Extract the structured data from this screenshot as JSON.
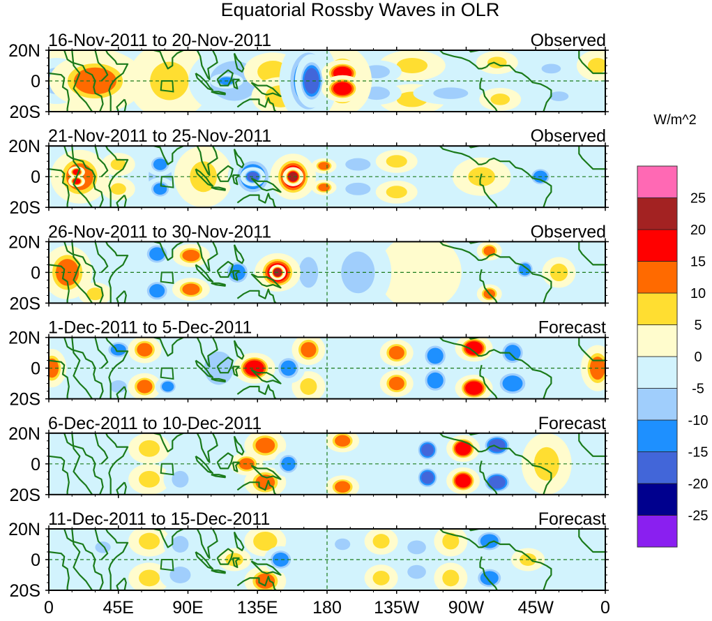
{
  "chart_data": {
    "type": "heatmap",
    "title": "Equatorial Rossby Waves in OLR",
    "colorbar": {
      "unit_label": "W/m^2",
      "levels": [
        -25,
        -20,
        -15,
        -10,
        -5,
        0,
        5,
        10,
        15,
        20,
        25
      ],
      "level_labels": [
        "-25",
        "-20",
        "-15",
        "-10",
        "-5",
        "0",
        "5",
        "10",
        "15",
        "20",
        "25"
      ],
      "colors": [
        "#8a1ff0",
        "#00008e",
        "#4266d9",
        "#1e90ff",
        "#a0cefc",
        "#d2f3fd",
        "#fffccd",
        "#ffde31",
        "#ff6a00",
        "#ff0000",
        "#a32222",
        "#ff69b4"
      ]
    },
    "x_axis": {
      "range_deg_east": [
        0,
        360
      ],
      "tick_values": [
        0,
        45,
        90,
        135,
        180,
        225,
        270,
        315,
        360
      ],
      "tick_labels": [
        "0",
        "45E",
        "90E",
        "135E",
        "180",
        "135W",
        "90W",
        "45W",
        "0"
      ]
    },
    "y_axis": {
      "range_deg_lat": [
        -20,
        20
      ],
      "tick_values": [
        20,
        0,
        -20
      ],
      "tick_labels": [
        "20N",
        "0",
        "20S"
      ]
    },
    "grid": false,
    "equator_line": true,
    "dateline_line": true,
    "panels": [
      {
        "title": "16-Nov-2011 to 20-Nov-2011",
        "status": "Observed",
        "features": [
          {
            "lon": 30,
            "lat": 0,
            "value": 12,
            "wlon": 22,
            "wlat": 14
          },
          {
            "lon": 22,
            "lat": 0,
            "value": 7,
            "wlon": 30,
            "wlat": 18
          },
          {
            "lon": 5,
            "lat": 0,
            "value": -8,
            "wlon": 14,
            "wlat": 12
          },
          {
            "lon": 60,
            "lat": 8,
            "value": -6,
            "wlon": 12,
            "wlat": 6
          },
          {
            "lon": 60,
            "lat": -8,
            "value": -6,
            "wlon": 12,
            "wlat": 6
          },
          {
            "lon": 78,
            "lat": 0,
            "value": 6,
            "wlon": 20,
            "wlat": 20
          },
          {
            "lon": 120,
            "lat": 0,
            "value": -8,
            "wlon": 22,
            "wlat": 18
          },
          {
            "lon": 115,
            "lat": 0,
            "value": -12,
            "wlon": 8,
            "wlat": 4
          },
          {
            "lon": 145,
            "lat": 6,
            "value": 8,
            "wlon": 14,
            "wlat": 10
          },
          {
            "lon": 150,
            "lat": -10,
            "value": 8,
            "wlon": 14,
            "wlat": 10
          },
          {
            "lon": 168,
            "lat": 0,
            "value": -14,
            "wlon": 14,
            "wlat": 22
          },
          {
            "lon": 170,
            "lat": 0,
            "value": -17,
            "wlon": 8,
            "wlat": 14
          },
          {
            "lon": 190,
            "lat": 5,
            "value": 17,
            "wlon": 10,
            "wlat": 7
          },
          {
            "lon": 190,
            "lat": -5,
            "value": 17,
            "wlon": 10,
            "wlat": 7
          },
          {
            "lon": 190,
            "lat": 0,
            "value": 12,
            "wlon": 14,
            "wlat": 18
          },
          {
            "lon": 212,
            "lat": 6,
            "value": -8,
            "wlon": 12,
            "wlat": 6
          },
          {
            "lon": 212,
            "lat": -8,
            "value": -8,
            "wlon": 12,
            "wlat": 6
          },
          {
            "lon": 235,
            "lat": 10,
            "value": 6,
            "wlon": 16,
            "wlat": 8
          },
          {
            "lon": 235,
            "lat": -12,
            "value": 6,
            "wlon": 16,
            "wlat": 8
          },
          {
            "lon": 260,
            "lat": -8,
            "value": -6,
            "wlon": 18,
            "wlat": 6
          },
          {
            "lon": 290,
            "lat": 12,
            "value": 6,
            "wlon": 10,
            "wlat": 6
          },
          {
            "lon": 292,
            "lat": -12,
            "value": 6,
            "wlon": 10,
            "wlat": 6
          },
          {
            "lon": 325,
            "lat": 8,
            "value": -6,
            "wlon": 10,
            "wlat": 5
          },
          {
            "lon": 330,
            "lat": -10,
            "value": -6,
            "wlon": 10,
            "wlat": 5
          },
          {
            "lon": 355,
            "lat": 10,
            "value": 6,
            "wlon": 10,
            "wlat": 8
          }
        ]
      },
      {
        "title": "21-Nov-2011 to 25-Nov-2011",
        "status": "Observed",
        "features": [
          {
            "lon": 20,
            "lat": 0,
            "value": 12,
            "wlon": 14,
            "wlat": 14
          },
          {
            "lon": 18,
            "lat": 3,
            "value": 17,
            "wlon": 4,
            "wlat": 3
          },
          {
            "lon": 18,
            "lat": -3,
            "value": 17,
            "wlon": 4,
            "wlat": 3
          },
          {
            "lon": 45,
            "lat": 8,
            "value": 6,
            "wlon": 8,
            "wlat": 6
          },
          {
            "lon": 45,
            "lat": -8,
            "value": 6,
            "wlon": 8,
            "wlat": 6
          },
          {
            "lon": 72,
            "lat": 8,
            "value": -12,
            "wlon": 7,
            "wlat": 6
          },
          {
            "lon": 72,
            "lat": -8,
            "value": -12,
            "wlon": 7,
            "wlat": 6
          },
          {
            "lon": 72,
            "lat": 0,
            "value": -6,
            "wlon": 12,
            "wlat": 18
          },
          {
            "lon": 100,
            "lat": 0,
            "value": 6,
            "wlon": 14,
            "wlat": 16
          },
          {
            "lon": 132,
            "lat": 0,
            "value": -14,
            "wlon": 12,
            "wlat": 12
          },
          {
            "lon": 132,
            "lat": 0,
            "value": -18,
            "wlon": 6,
            "wlat": 5
          },
          {
            "lon": 158,
            "lat": 0,
            "value": 17,
            "wlon": 11,
            "wlat": 12
          },
          {
            "lon": 158,
            "lat": 0,
            "value": 21,
            "wlon": 5,
            "wlat": 5
          },
          {
            "lon": 178,
            "lat": 7,
            "value": 12,
            "wlon": 6,
            "wlat": 4
          },
          {
            "lon": 178,
            "lat": -7,
            "value": 12,
            "wlon": 6,
            "wlat": 4
          },
          {
            "lon": 200,
            "lat": 8,
            "value": -7,
            "wlon": 12,
            "wlat": 6
          },
          {
            "lon": 200,
            "lat": -8,
            "value": -7,
            "wlon": 12,
            "wlat": 6
          },
          {
            "lon": 225,
            "lat": 10,
            "value": 7,
            "wlon": 10,
            "wlat": 6
          },
          {
            "lon": 225,
            "lat": -10,
            "value": 7,
            "wlon": 10,
            "wlat": 6
          },
          {
            "lon": 280,
            "lat": 0,
            "value": 6,
            "wlon": 14,
            "wlat": 10
          },
          {
            "lon": 318,
            "lat": 0,
            "value": -13,
            "wlon": 7,
            "wlat": 6
          }
        ]
      },
      {
        "title": "26-Nov-2011 to 30-Nov-2011",
        "status": "Observed",
        "features": [
          {
            "lon": 12,
            "lat": 0,
            "value": 12,
            "wlon": 12,
            "wlat": 14
          },
          {
            "lon": 30,
            "lat": -14,
            "value": 7,
            "wlon": 8,
            "wlat": 6
          },
          {
            "lon": 70,
            "lat": 12,
            "value": -12,
            "wlon": 8,
            "wlat": 7
          },
          {
            "lon": 70,
            "lat": -12,
            "value": -12,
            "wlon": 8,
            "wlat": 7
          },
          {
            "lon": 92,
            "lat": 11,
            "value": 12,
            "wlon": 9,
            "wlat": 6
          },
          {
            "lon": 92,
            "lat": -11,
            "value": 12,
            "wlon": 9,
            "wlat": 6
          },
          {
            "lon": 122,
            "lat": 0,
            "value": -13,
            "wlon": 8,
            "wlat": 8
          },
          {
            "lon": 148,
            "lat": 0,
            "value": 17,
            "wlon": 11,
            "wlat": 10
          },
          {
            "lon": 148,
            "lat": 0,
            "value": 24,
            "wlon": 4,
            "wlat": 4
          },
          {
            "lon": 168,
            "lat": 0,
            "value": -6,
            "wlon": 10,
            "wlat": 16
          },
          {
            "lon": 200,
            "lat": 0,
            "value": -7,
            "wlon": 16,
            "wlat": 20
          },
          {
            "lon": 240,
            "lat": 0,
            "value": 4,
            "wlon": 20,
            "wlat": 20
          },
          {
            "lon": 285,
            "lat": 14,
            "value": 12,
            "wlon": 6,
            "wlat": 5
          },
          {
            "lon": 285,
            "lat": -14,
            "value": 12,
            "wlon": 6,
            "wlat": 5
          },
          {
            "lon": 308,
            "lat": 2,
            "value": -13,
            "wlon": 6,
            "wlat": 6
          },
          {
            "lon": 330,
            "lat": 0,
            "value": 8,
            "wlon": 8,
            "wlat": 8
          }
        ]
      },
      {
        "title": "1-Dec-2011 to 5-Dec-2011",
        "status": "Forecast",
        "features": [
          {
            "lon": 2,
            "lat": 0,
            "value": 12,
            "wlon": 7,
            "wlat": 10
          },
          {
            "lon": 45,
            "lat": 12,
            "value": -12,
            "wlon": 8,
            "wlat": 6
          },
          {
            "lon": 45,
            "lat": -12,
            "value": -7,
            "wlon": 8,
            "wlat": 6
          },
          {
            "lon": 62,
            "lat": 12,
            "value": 12,
            "wlon": 8,
            "wlat": 7
          },
          {
            "lon": 62,
            "lat": -12,
            "value": 12,
            "wlon": 8,
            "wlat": 7
          },
          {
            "lon": 77,
            "lat": -12,
            "value": -13,
            "wlon": 6,
            "wlat": 5
          },
          {
            "lon": 110,
            "lat": 0,
            "value": -7,
            "wlon": 14,
            "wlat": 16
          },
          {
            "lon": 133,
            "lat": 0,
            "value": 18,
            "wlon": 10,
            "wlat": 8
          },
          {
            "lon": 155,
            "lat": 0,
            "value": -12,
            "wlon": 8,
            "wlat": 8
          },
          {
            "lon": 168,
            "lat": 12,
            "value": 12,
            "wlon": 8,
            "wlat": 8
          },
          {
            "lon": 168,
            "lat": -12,
            "value": 7,
            "wlon": 8,
            "wlat": 8
          },
          {
            "lon": 225,
            "lat": 10,
            "value": 12,
            "wlon": 8,
            "wlat": 7
          },
          {
            "lon": 225,
            "lat": -10,
            "value": 12,
            "wlon": 8,
            "wlat": 7
          },
          {
            "lon": 250,
            "lat": 8,
            "value": -13,
            "wlon": 8,
            "wlat": 8
          },
          {
            "lon": 250,
            "lat": -8,
            "value": -13,
            "wlon": 8,
            "wlat": 8
          },
          {
            "lon": 275,
            "lat": 13,
            "value": 18,
            "wlon": 9,
            "wlat": 7
          },
          {
            "lon": 275,
            "lat": -13,
            "value": 18,
            "wlon": 9,
            "wlat": 7
          },
          {
            "lon": 300,
            "lat": 10,
            "value": -13,
            "wlon": 8,
            "wlat": 8
          },
          {
            "lon": 300,
            "lat": -10,
            "value": -13,
            "wlon": 10,
            "wlat": 8
          },
          {
            "lon": 355,
            "lat": 0,
            "value": 12,
            "wlon": 8,
            "wlat": 12
          }
        ]
      },
      {
        "title": "6-Dec-2011 to 10-Dec-2011",
        "status": "Forecast",
        "features": [
          {
            "lon": 65,
            "lat": 10,
            "value": 7,
            "wlon": 10,
            "wlat": 8
          },
          {
            "lon": 65,
            "lat": -10,
            "value": 7,
            "wlon": 10,
            "wlat": 8
          },
          {
            "lon": 85,
            "lat": -10,
            "value": -7,
            "wlon": 8,
            "wlat": 8
          },
          {
            "lon": 140,
            "lat": 12,
            "value": 12,
            "wlon": 10,
            "wlat": 8
          },
          {
            "lon": 140,
            "lat": -12,
            "value": 12,
            "wlon": 10,
            "wlat": 8
          },
          {
            "lon": 128,
            "lat": 0,
            "value": 12,
            "wlon": 8,
            "wlat": 6
          },
          {
            "lon": 155,
            "lat": 0,
            "value": -13,
            "wlon": 7,
            "wlat": 7
          },
          {
            "lon": 190,
            "lat": 15,
            "value": 12,
            "wlon": 8,
            "wlat": 6
          },
          {
            "lon": 190,
            "lat": -15,
            "value": 12,
            "wlon": 8,
            "wlat": 6
          },
          {
            "lon": 245,
            "lat": 9,
            "value": -16,
            "wlon": 7,
            "wlat": 7
          },
          {
            "lon": 245,
            "lat": -9,
            "value": -16,
            "wlon": 7,
            "wlat": 7
          },
          {
            "lon": 268,
            "lat": 10,
            "value": 18,
            "wlon": 8,
            "wlat": 7
          },
          {
            "lon": 268,
            "lat": -11,
            "value": 18,
            "wlon": 8,
            "wlat": 7
          },
          {
            "lon": 290,
            "lat": 12,
            "value": -17,
            "wlon": 9,
            "wlat": 7
          },
          {
            "lon": 290,
            "lat": -12,
            "value": -17,
            "wlon": 9,
            "wlat": 7
          },
          {
            "lon": 322,
            "lat": 0,
            "value": 7,
            "wlon": 12,
            "wlat": 16
          }
        ]
      },
      {
        "title": "11-Dec-2011 to 15-Dec-2011",
        "status": "Forecast",
        "features": [
          {
            "lon": 35,
            "lat": 8,
            "value": -6,
            "wlon": 8,
            "wlat": 6
          },
          {
            "lon": 65,
            "lat": 12,
            "value": 7,
            "wlon": 10,
            "wlat": 8
          },
          {
            "lon": 65,
            "lat": -12,
            "value": 7,
            "wlon": 10,
            "wlat": 8
          },
          {
            "lon": 85,
            "lat": 10,
            "value": -7,
            "wlon": 8,
            "wlat": 8
          },
          {
            "lon": 85,
            "lat": -10,
            "value": -7,
            "wlon": 10,
            "wlat": 8
          },
          {
            "lon": 140,
            "lat": 12,
            "value": 10,
            "wlon": 10,
            "wlat": 8
          },
          {
            "lon": 140,
            "lat": -14,
            "value": 12,
            "wlon": 10,
            "wlat": 8
          },
          {
            "lon": 120,
            "lat": 0,
            "value": 8,
            "wlon": 8,
            "wlat": 6
          },
          {
            "lon": 150,
            "lat": 0,
            "value": -13,
            "wlon": 8,
            "wlat": 7
          },
          {
            "lon": 190,
            "lat": 10,
            "value": -6,
            "wlon": 8,
            "wlat": 6
          },
          {
            "lon": 215,
            "lat": 12,
            "value": 7,
            "wlon": 8,
            "wlat": 7
          },
          {
            "lon": 215,
            "lat": -12,
            "value": 7,
            "wlon": 8,
            "wlat": 7
          },
          {
            "lon": 238,
            "lat": 8,
            "value": -9,
            "wlon": 8,
            "wlat": 6
          },
          {
            "lon": 238,
            "lat": -8,
            "value": -9,
            "wlon": 8,
            "wlat": 6
          },
          {
            "lon": 260,
            "lat": 12,
            "value": 7,
            "wlon": 8,
            "wlat": 8
          },
          {
            "lon": 260,
            "lat": -12,
            "value": 7,
            "wlon": 8,
            "wlat": 8
          },
          {
            "lon": 285,
            "lat": 12,
            "value": -13,
            "wlon": 9,
            "wlat": 7
          },
          {
            "lon": 285,
            "lat": -12,
            "value": -13,
            "wlon": 9,
            "wlat": 7
          },
          {
            "lon": 310,
            "lat": 0,
            "value": 7,
            "wlon": 8,
            "wlat": 6
          }
        ]
      }
    ]
  }
}
